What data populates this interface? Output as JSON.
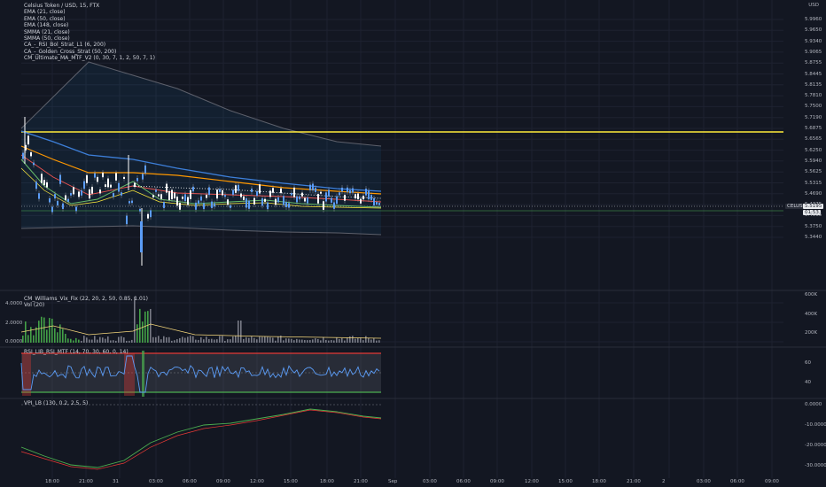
{
  "header": {
    "title": "Celsius Token / USD, 15, FTX",
    "indicators": [
      "EMA (21, close)",
      "EMA (50, close)",
      "EMA (148, close)",
      "SMMA (21, close)",
      "SMMA (50, close)",
      "CA_-_RSI_Bol_Strat_L1 (6, 200)",
      "CA_-_Golden_Cross_Strat (50, 200)",
      "CM_Ultimate_MA_MTF_V2 (0, 30, 7, 1, 2, 50, 7, 1)"
    ]
  },
  "price_axis": {
    "currency": "USD",
    "ticks": [
      "5.9960",
      "5.9650",
      "5.9340",
      "5.9065",
      "5.8755",
      "5.8445",
      "5.8135",
      "5.7810",
      "5.7500",
      "5.7190",
      "5.6875",
      "5.6565",
      "5.6250",
      "5.5940",
      "5.5625",
      "5.5315",
      "5.4690",
      "5.4375",
      "5.4065",
      "5.3750",
      "5.3440"
    ],
    "last_tag": "CELUSD",
    "last_price": "5.5195",
    "countdown": "01:53"
  },
  "panes": {
    "williams": {
      "title": "CM_Williams_Vix_Fix (22, 20, 2, 50, 0.85, 1.01)",
      "vol_title": "Vol (20)",
      "left_ticks": [
        "4.0000",
        "2.0000",
        "0.0000"
      ],
      "right_ticks": [
        "600K",
        "400K",
        "200K"
      ]
    },
    "rsi": {
      "title": "RSI_LIB_RSI_MTF (14, 70, 30, 60, 0, 14)",
      "right_ticks": [
        "60",
        "40"
      ]
    },
    "vpi": {
      "title": "VPI_LB (130, 0.2, 2.5, 5)",
      "right_ticks": [
        "0.0000",
        "-10.0000",
        "-20.0000",
        "-30.0000"
      ]
    }
  },
  "time_axis": [
    "18:00",
    "21:00",
    "31",
    "03:00",
    "06:00",
    "09:00",
    "12:00",
    "15:00",
    "18:00",
    "21:00",
    "Sep",
    "03:00",
    "06:00",
    "09:00",
    "12:00",
    "15:00",
    "18:00",
    "21:00",
    "2",
    "03:00",
    "06:00",
    "09:00"
  ],
  "colors": {
    "bg": "#131722",
    "grid": "#1e2230",
    "up": "#ffffff",
    "down": "#5b9cf6",
    "yellow": "#ffeb3b",
    "ema_orange": "#ff9800",
    "ema_blue": "#3d7fd9",
    "green": "#4caf50",
    "red": "#e53935"
  }
}
